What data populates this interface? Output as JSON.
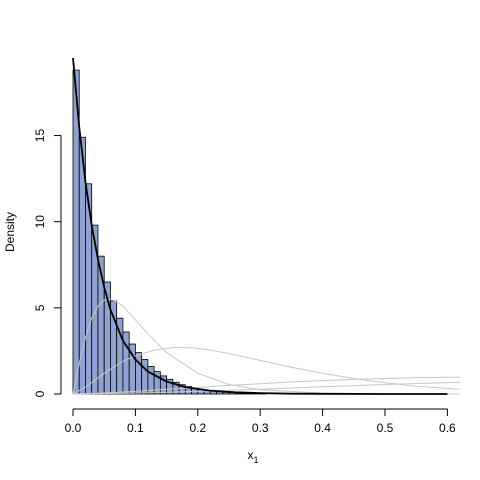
{
  "chart_data": {
    "type": "bar",
    "title": "",
    "xlabel": "x",
    "xlabel_subscript": "1",
    "ylabel": "Density",
    "xlim": [
      0.0,
      0.6
    ],
    "ylim": [
      0,
      19.5
    ],
    "x_ticks": [
      0.0,
      0.1,
      0.2,
      0.3,
      0.4,
      0.5,
      0.6
    ],
    "x_tick_labels": [
      "0.0",
      "0.1",
      "0.2",
      "0.3",
      "0.4",
      "0.5",
      "0.6"
    ],
    "y_ticks": [
      0,
      5,
      10,
      15
    ],
    "y_tick_labels": [
      "0",
      "5",
      "10",
      "15"
    ],
    "grid": false,
    "colors": {
      "bar_fill": "#8ea3cf",
      "bar_stroke": "#000000",
      "density_line": "#000000",
      "component_lines": "#c8c8c8"
    },
    "histogram": {
      "bin_width": 0.01,
      "bins_start": [
        0.0,
        0.01,
        0.02,
        0.03,
        0.04,
        0.05,
        0.06,
        0.07,
        0.08,
        0.09,
        0.1,
        0.11,
        0.12,
        0.13,
        0.14,
        0.15,
        0.16,
        0.17,
        0.18,
        0.19,
        0.2,
        0.21,
        0.22,
        0.23,
        0.24,
        0.25,
        0.26,
        0.27,
        0.28,
        0.29,
        0.3
      ],
      "density": [
        18.8,
        14.9,
        12.2,
        9.8,
        8.0,
        6.5,
        5.4,
        4.4,
        3.6,
        2.9,
        2.4,
        2.0,
        1.6,
        1.3,
        1.05,
        0.85,
        0.68,
        0.54,
        0.43,
        0.34,
        0.27,
        0.21,
        0.17,
        0.13,
        0.1,
        0.08,
        0.06,
        0.05,
        0.04,
        0.03,
        0.02
      ]
    },
    "series": [
      {
        "type": "line",
        "role": "fitted-density",
        "x": [
          0.0,
          0.01,
          0.02,
          0.03,
          0.04,
          0.05,
          0.06,
          0.08,
          0.1,
          0.12,
          0.15,
          0.18,
          0.22,
          0.26,
          0.3,
          0.35,
          0.4,
          0.5,
          0.6
        ],
        "values": [
          19.5,
          15.5,
          12.3,
          9.8,
          7.8,
          6.2,
          4.9,
          3.1,
          2.0,
          1.3,
          0.72,
          0.4,
          0.2,
          0.1,
          0.05,
          0.02,
          0.01,
          0.0,
          0.0
        ]
      },
      {
        "type": "line",
        "role": "component-curve",
        "x": [
          0.0,
          0.01,
          0.02,
          0.03,
          0.04,
          0.05,
          0.06,
          0.07,
          0.08,
          0.1,
          0.12,
          0.15,
          0.2,
          0.25,
          0.3,
          0.4,
          0.5,
          0.62
        ],
        "values": [
          0.0,
          1.8,
          3.3,
          4.4,
          5.1,
          5.45,
          5.5,
          5.35,
          5.1,
          4.3,
          3.5,
          2.4,
          1.2,
          0.55,
          0.25,
          0.05,
          0.01,
          0.0
        ]
      },
      {
        "type": "line",
        "role": "component-curve",
        "x": [
          0.0,
          0.02,
          0.05,
          0.08,
          0.1,
          0.13,
          0.16,
          0.19,
          0.22,
          0.25,
          0.3,
          0.35,
          0.4,
          0.45,
          0.5,
          0.55,
          0.62
        ],
        "values": [
          0.0,
          0.4,
          1.2,
          1.9,
          2.2,
          2.55,
          2.7,
          2.68,
          2.55,
          2.35,
          1.95,
          1.55,
          1.2,
          0.9,
          0.65,
          0.45,
          0.28
        ]
      },
      {
        "type": "line",
        "role": "component-curve",
        "x": [
          0.0,
          0.05,
          0.1,
          0.15,
          0.2,
          0.25,
          0.3,
          0.35,
          0.4,
          0.45,
          0.5,
          0.55,
          0.62
        ],
        "values": [
          0.0,
          0.06,
          0.15,
          0.27,
          0.38,
          0.5,
          0.6,
          0.7,
          0.78,
          0.85,
          0.9,
          0.95,
          0.98
        ]
      },
      {
        "type": "line",
        "role": "component-curve",
        "x": [
          0.0,
          0.1,
          0.2,
          0.3,
          0.4,
          0.5,
          0.62
        ],
        "values": [
          0.0,
          0.05,
          0.15,
          0.28,
          0.42,
          0.55,
          0.68
        ]
      }
    ]
  }
}
